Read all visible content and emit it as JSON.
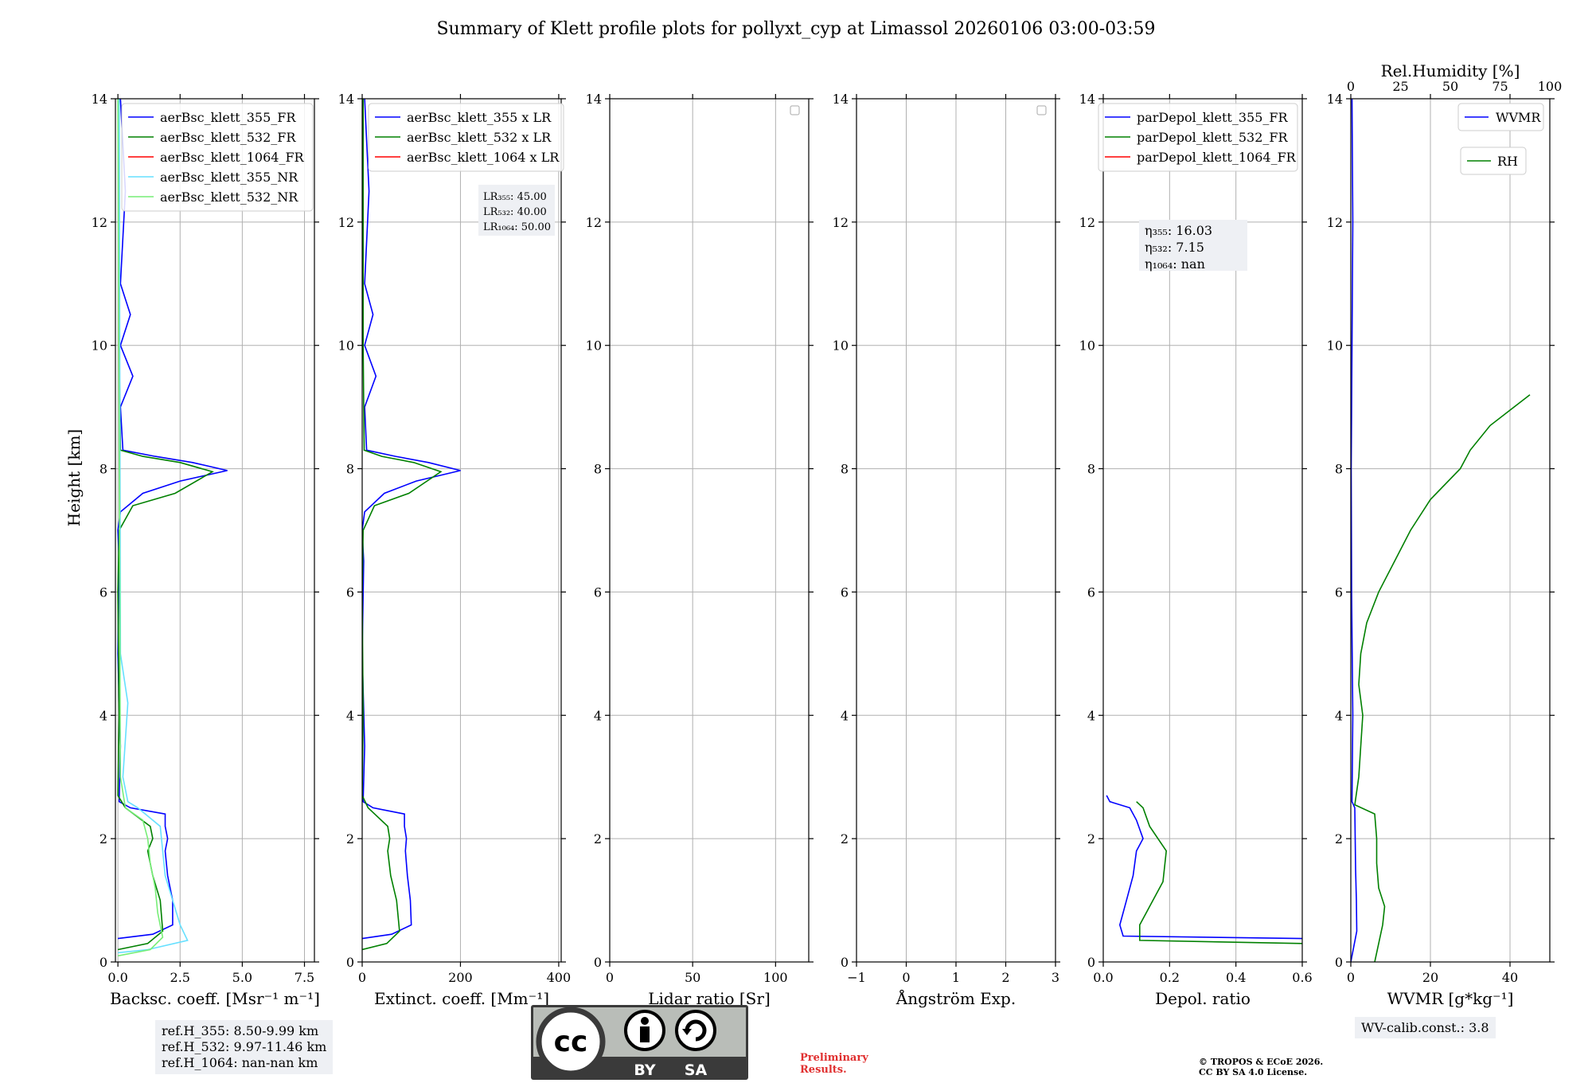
{
  "title": "Summary of Klett profile plots for pollyxt_cyp at Limassol 20260106 03:00-03:59",
  "ylabel": "Height [km]",
  "chart_data": [
    {
      "type": "line",
      "xlabel": "Backsc. coeff. [Msr⁻¹ m⁻¹]",
      "xlim": [
        -0.1,
        7.9
      ],
      "xticks": [
        0,
        2.5,
        5,
        7.5
      ],
      "xtick_labels": [
        "0.0",
        "2.5",
        "5.0",
        "7.5"
      ],
      "ylim": [
        0,
        14
      ],
      "legend": [
        "aerBsc_klett_355_FR",
        "aerBsc_klett_532_FR",
        "aerBsc_klett_1064_FR",
        "aerBsc_klett_355_NR",
        "aerBsc_klett_532_NR"
      ],
      "series": [
        {
          "name": "aerBsc_klett_355_FR",
          "color": "#0000ff",
          "points": [
            [
              0,
              0.38
            ],
            [
              1.4,
              0.45
            ],
            [
              2.2,
              0.6
            ],
            [
              2.2,
              1.0
            ],
            [
              2.0,
              1.4
            ],
            [
              1.9,
              1.8
            ],
            [
              2.0,
              2.0
            ],
            [
              1.9,
              2.2
            ],
            [
              1.9,
              2.4
            ],
            [
              0.5,
              2.5
            ],
            [
              0.05,
              2.6
            ],
            [
              0.1,
              3.5
            ],
            [
              0.0,
              5
            ],
            [
              0.05,
              6.5
            ],
            [
              0,
              7.0
            ],
            [
              0.1,
              7.3
            ],
            [
              1.0,
              7.6
            ],
            [
              2.5,
              7.8
            ],
            [
              4.4,
              7.97
            ],
            [
              3.0,
              8.1
            ],
            [
              1.5,
              8.2
            ],
            [
              0.2,
              8.3
            ],
            [
              0.1,
              9.0
            ],
            [
              0.6,
              9.5
            ],
            [
              0.1,
              10
            ],
            [
              0.5,
              10.5
            ],
            [
              0.1,
              11
            ],
            [
              0.3,
              12.5
            ],
            [
              0.1,
              14
            ]
          ]
        },
        {
          "name": "aerBsc_klett_532_FR",
          "color": "#008000",
          "points": [
            [
              0,
              0.2
            ],
            [
              1.2,
              0.3
            ],
            [
              1.8,
              0.5
            ],
            [
              1.7,
              1.0
            ],
            [
              1.4,
              1.4
            ],
            [
              1.2,
              1.8
            ],
            [
              1.4,
              2.0
            ],
            [
              1.3,
              2.2
            ],
            [
              0.3,
              2.5
            ],
            [
              0.0,
              2.7
            ],
            [
              0.05,
              4
            ],
            [
              0,
              6
            ],
            [
              0.05,
              7.0
            ],
            [
              0.6,
              7.4
            ],
            [
              2.3,
              7.6
            ],
            [
              3.8,
              7.95
            ],
            [
              2.5,
              8.1
            ],
            [
              1.0,
              8.2
            ],
            [
              0.1,
              8.3
            ],
            [
              0.05,
              10
            ],
            [
              0.05,
              14
            ]
          ]
        },
        {
          "name": "aerBsc_klett_355_NR",
          "color": "#66e0ff",
          "points": [
            [
              0,
              0.15
            ],
            [
              1.2,
              0.2
            ],
            [
              2.8,
              0.35
            ],
            [
              2.5,
              0.6
            ],
            [
              2.2,
              1.0
            ],
            [
              1.9,
              1.4
            ],
            [
              1.8,
              1.8
            ],
            [
              1.7,
              2.2
            ],
            [
              0.8,
              2.5
            ],
            [
              0.4,
              2.6
            ],
            [
              0.2,
              3.0
            ],
            [
              0.4,
              4.2
            ],
            [
              0.1,
              5
            ],
            [
              0.05,
              14
            ]
          ]
        },
        {
          "name": "aerBsc_klett_532_NR",
          "color": "#77ee77",
          "points": [
            [
              0,
              0.1
            ],
            [
              1.3,
              0.2
            ],
            [
              1.8,
              0.4
            ],
            [
              1.6,
              0.8
            ],
            [
              1.5,
              1.2
            ],
            [
              1.3,
              1.6
            ],
            [
              1.2,
              2.0
            ],
            [
              1.0,
              2.3
            ],
            [
              0.3,
              2.5
            ],
            [
              0.1,
              3
            ],
            [
              0.0,
              14
            ]
          ]
        }
      ]
    },
    {
      "type": "line",
      "xlabel": "Extinct. coeff. [Mm⁻¹]",
      "xlim": [
        0,
        405
      ],
      "xticks": [
        0,
        200,
        400
      ],
      "xtick_labels": [
        "0",
        "200",
        "400"
      ],
      "ylim": [
        0,
        14
      ],
      "legend": [
        "aerBsc_klett_355 x LR",
        "aerBsc_klett_532 x LR",
        "aerBsc_klett_1064 x LR"
      ],
      "lr_labels": {
        "lr355": "LR₃₅₅: 45.00",
        "lr532": "LR₅₃₂: 40.00",
        "lr1064": "LR₁₀₆₄: 50.00"
      },
      "series": [
        {
          "name": "aerBsc_klett_355 x LR",
          "color": "#0000ff",
          "points": [
            [
              0,
              0.38
            ],
            [
              60,
              0.45
            ],
            [
              100,
              0.6
            ],
            [
              98,
              1.0
            ],
            [
              92,
              1.4
            ],
            [
              88,
              1.8
            ],
            [
              90,
              2.0
            ],
            [
              86,
              2.2
            ],
            [
              86,
              2.4
            ],
            [
              22,
              2.5
            ],
            [
              2,
              2.6
            ],
            [
              5,
              3.5
            ],
            [
              0,
              5
            ],
            [
              3,
              6.5
            ],
            [
              0,
              7.0
            ],
            [
              5,
              7.3
            ],
            [
              45,
              7.6
            ],
            [
              110,
              7.8
            ],
            [
              200,
              7.97
            ],
            [
              135,
              8.1
            ],
            [
              68,
              8.2
            ],
            [
              9,
              8.3
            ],
            [
              5,
              9.0
            ],
            [
              28,
              9.5
            ],
            [
              5,
              10
            ],
            [
              22,
              10.5
            ],
            [
              5,
              11
            ],
            [
              14,
              12.5
            ],
            [
              5,
              14
            ]
          ]
        },
        {
          "name": "aerBsc_klett_532 x LR",
          "color": "#008000",
          "points": [
            [
              0,
              0.2
            ],
            [
              50,
              0.3
            ],
            [
              76,
              0.5
            ],
            [
              70,
              1.0
            ],
            [
              58,
              1.4
            ],
            [
              52,
              1.8
            ],
            [
              56,
              2.0
            ],
            [
              52,
              2.2
            ],
            [
              12,
              2.5
            ],
            [
              0,
              2.7
            ],
            [
              2,
              4
            ],
            [
              0,
              6
            ],
            [
              2,
              7.0
            ],
            [
              25,
              7.4
            ],
            [
              95,
              7.6
            ],
            [
              160,
              7.95
            ],
            [
              105,
              8.1
            ],
            [
              40,
              8.2
            ],
            [
              4,
              8.3
            ],
            [
              2,
              10
            ],
            [
              2,
              14
            ]
          ]
        }
      ]
    },
    {
      "type": "line",
      "xlabel": "Lidar ratio [Sr]",
      "xlim": [
        0,
        120
      ],
      "xticks": [
        0,
        50,
        100
      ],
      "xtick_labels": [
        "0",
        "50",
        "100"
      ],
      "ylim": [
        0,
        14
      ],
      "series": []
    },
    {
      "type": "line",
      "xlabel": "Ångström Exp.",
      "xlim": [
        -1,
        3
      ],
      "xticks": [
        -1,
        0,
        1,
        2,
        3
      ],
      "xtick_labels": [
        "−1",
        "0",
        "1",
        "2",
        "3"
      ],
      "ylim": [
        0,
        14
      ],
      "series": []
    },
    {
      "type": "line",
      "xlabel": "Depol. ratio",
      "xlim": [
        0,
        0.6
      ],
      "xticks": [
        0,
        0.2,
        0.4,
        0.6
      ],
      "xtick_labels": [
        "0.0",
        "0.2",
        "0.4",
        "0.6"
      ],
      "ylim": [
        0,
        14
      ],
      "legend": [
        "parDepol_klett_355_FR",
        "parDepol_klett_532_FR",
        "parDepol_klett_1064_FR"
      ],
      "eta_labels": {
        "eta355": "η₃₅₅: 16.03",
        "eta532": "η₅₃₂: 7.15",
        "eta1064": "η₁₀₆₄: nan"
      },
      "series": [
        {
          "name": "parDepol_klett_355_FR",
          "color": "#0000ff",
          "points": [
            [
              0.6,
              0.38
            ],
            [
              0.06,
              0.42
            ],
            [
              0.05,
              0.6
            ],
            [
              0.07,
              1.0
            ],
            [
              0.09,
              1.4
            ],
            [
              0.1,
              1.8
            ],
            [
              0.12,
              2.0
            ],
            [
              0.1,
              2.3
            ],
            [
              0.08,
              2.5
            ],
            [
              0.02,
              2.6
            ],
            [
              0.01,
              2.7
            ]
          ]
        },
        {
          "name": "parDepol_klett_532_FR",
          "color": "#008000",
          "points": [
            [
              0.6,
              0.3
            ],
            [
              0.11,
              0.35
            ],
            [
              0.11,
              0.6
            ],
            [
              0.14,
              0.9
            ],
            [
              0.18,
              1.3
            ],
            [
              0.19,
              1.8
            ],
            [
              0.14,
              2.2
            ],
            [
              0.12,
              2.5
            ],
            [
              0.1,
              2.6
            ]
          ]
        }
      ]
    },
    {
      "type": "line",
      "xlabel": "WVMR [g*kg⁻¹]",
      "x2label": "Rel.Humidity [%]",
      "xlim": [
        0,
        50
      ],
      "xticks": [
        0,
        20,
        40
      ],
      "xtick_labels": [
        "0",
        "20",
        "40"
      ],
      "x2lim": [
        0,
        100
      ],
      "x2ticks": [
        0,
        25,
        50,
        75,
        100
      ],
      "x2tick_labels": [
        "0",
        "25",
        "50",
        "75",
        "100"
      ],
      "ylim": [
        0,
        14
      ],
      "legend": [
        "WVMR",
        "RH"
      ],
      "series": [
        {
          "name": "WVMR",
          "color": "#0000ff",
          "points": [
            [
              0,
              0
            ],
            [
              1.5,
              0.5
            ],
            [
              1.4,
              1.0
            ],
            [
              1.2,
              1.5
            ],
            [
              1.1,
              2.0
            ],
            [
              1.0,
              2.5
            ],
            [
              0.3,
              2.6
            ],
            [
              0.5,
              4
            ],
            [
              0.2,
              6
            ],
            [
              0.1,
              8
            ],
            [
              0.3,
              10
            ],
            [
              0.5,
              12
            ],
            [
              0.3,
              14
            ]
          ]
        },
        {
          "name": "RH",
          "color": "#008000",
          "points": [
            [
              12,
              0.0
            ],
            [
              14,
              0.3
            ],
            [
              16,
              0.6
            ],
            [
              17,
              0.9
            ],
            [
              14,
              1.2
            ],
            [
              13,
              1.6
            ],
            [
              13,
              2.0
            ],
            [
              12,
              2.4
            ],
            [
              2,
              2.55
            ],
            [
              4,
              3.0
            ],
            [
              5,
              3.5
            ],
            [
              6,
              4.0
            ],
            [
              4,
              4.5
            ],
            [
              5,
              5.0
            ],
            [
              8,
              5.5
            ],
            [
              14,
              6.0
            ],
            [
              22,
              6.5
            ],
            [
              30,
              7.0
            ],
            [
              40,
              7.5
            ],
            [
              55,
              8.0
            ],
            [
              60,
              8.3
            ],
            [
              70,
              8.7
            ],
            [
              90,
              9.2
            ]
          ]
        }
      ]
    }
  ],
  "refs": {
    "r355": "ref.H_355: 8.50-9.99 km",
    "r532": "ref.H_532: 9.97-11.46 km",
    "r1064": "ref.H_1064: nan-nan km"
  },
  "wv_calib": "WV-calib.const.: 3.8",
  "preliminary": {
    "line1": "Preliminary",
    "line2": "Results."
  },
  "copyright": {
    "line1": "© TROPOS & ECoE 2026.",
    "line2": "CC BY SA 4.0 License."
  },
  "license_badge": {
    "cc": "cc",
    "by": "BY",
    "sa": "SA"
  }
}
